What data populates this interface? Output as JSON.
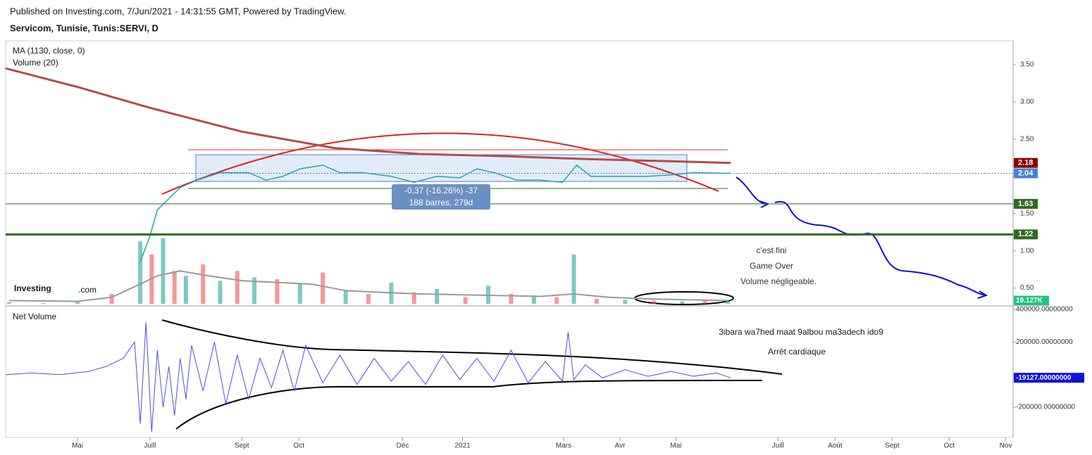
{
  "header": {
    "published": "Published on Investing.com, 7/Jun/2021 - 14:31:55 GMT, Powered by TradingView.",
    "symbol": "Servicom, Tunisie, Tunis:SERVI, D",
    "indicator_ma": "MA (1130, close, 0)",
    "indicator_volume": "Volume (20)",
    "indicator_net_volume": "Net Volume",
    "logo": "Investing",
    "logo_suffix": ".com"
  },
  "annotations": {
    "measure_change": "-0.37 (-16.26%) -37",
    "measure_bars": "188 barres, 279d",
    "note1": "c'est fini",
    "note2": "Game Over",
    "note3": "Volume  négligeable.",
    "note4": "3ibara wa7hed maat 9albou ma3adech ido9",
    "note5": "Arrêt cardiaque"
  },
  "chart_data": [
    {
      "type": "line",
      "panel": "price",
      "xlim": [
        -1.26,
        16.4
      ],
      "xticks": [
        {
          "value": 0,
          "label": "Mai"
        },
        {
          "value": 1.27,
          "label": "Juill"
        },
        {
          "value": 2.88,
          "label": "Sept"
        },
        {
          "value": 3.88,
          "label": "Oct"
        },
        {
          "value": 5.7,
          "label": "Déc"
        },
        {
          "value": 6.75,
          "label": "2021"
        },
        {
          "value": 8.52,
          "label": "Mars"
        },
        {
          "value": 9.51,
          "label": "Avr"
        },
        {
          "value": 10.49,
          "label": "Mai"
        },
        {
          "value": 12.28,
          "label": "Juill"
        },
        {
          "value": 13.28,
          "label": "Août"
        },
        {
          "value": 14.28,
          "label": "Sept"
        },
        {
          "value": 15.28,
          "label": "Oct"
        },
        {
          "value": 16.27,
          "label": "Nov"
        }
      ],
      "ylim": [
        0.26,
        3.82
      ],
      "yticks": [
        {
          "value": 0.5,
          "label": "0.50"
        },
        {
          "value": 1.0,
          "label": "1.00"
        },
        {
          "value": 1.5,
          "label": "1.50"
        },
        {
          "value": 2.0,
          "label": "2.00"
        },
        {
          "value": 2.5,
          "label": "2.50"
        },
        {
          "value": 3.0,
          "label": "3.00"
        },
        {
          "value": 3.5,
          "label": "3.50"
        }
      ],
      "series": [
        {
          "name": "Close",
          "color": "#26a69a",
          "x": [
            1.1,
            1.27,
            1.4,
            1.6,
            1.8,
            2.1,
            2.5,
            3.0,
            3.3,
            3.6,
            3.9,
            4.3,
            4.6,
            5.0,
            5.5,
            5.9,
            6.3,
            6.7,
            7.0,
            7.3,
            7.7,
            8.1,
            8.5,
            8.75,
            9.0,
            9.5,
            10.0,
            10.4,
            10.8,
            11.45
          ],
          "values": [
            0.85,
            1.2,
            1.55,
            1.7,
            1.85,
            1.95,
            2.05,
            2.05,
            1.95,
            2.0,
            2.1,
            2.15,
            2.05,
            2.05,
            2.0,
            1.92,
            2.0,
            1.98,
            2.1,
            2.05,
            1.95,
            1.95,
            1.92,
            2.15,
            2.0,
            2.0,
            2.0,
            2.02,
            2.05,
            2.04
          ]
        },
        {
          "name": "MA (1130, close, 0)",
          "color": "#b24c4c",
          "x": [
            -1.26,
            0,
            1.27,
            2.88,
            4.5,
            6,
            7.5,
            9,
            10.5,
            11.45
          ],
          "values": [
            3.45,
            3.2,
            2.92,
            2.6,
            2.38,
            2.3,
            2.27,
            2.23,
            2.2,
            2.18
          ]
        }
      ],
      "levels": [
        {
          "value": 2.18,
          "label": "2.18",
          "color": "#8b0000"
        },
        {
          "value": 2.04,
          "label": "2.04",
          "color": "#4a7fd8"
        },
        {
          "value": 1.63,
          "label": "1.63",
          "color": "#2e6b1f"
        },
        {
          "value": 1.22,
          "label": "1.22",
          "color": "#2e6b1f"
        }
      ]
    },
    {
      "type": "bar",
      "panel": "volume",
      "ylim": [
        0,
        1600
      ],
      "x": [
        -1.2,
        -0.6,
        0,
        0.6,
        1.1,
        1.3,
        1.5,
        1.7,
        1.9,
        2.2,
        2.5,
        2.8,
        3.1,
        3.5,
        3.9,
        4.3,
        4.7,
        5.1,
        5.5,
        5.9,
        6.3,
        6.8,
        7.2,
        7.6,
        8.0,
        8.4,
        8.7,
        9.1,
        9.6,
        10.1,
        10.6,
        11.0,
        11.4
      ],
      "values": [
        10,
        5,
        15,
        60,
        380,
        300,
        400,
        200,
        170,
        240,
        140,
        200,
        160,
        150,
        120,
        190,
        80,
        60,
        130,
        70,
        90,
        40,
        110,
        60,
        50,
        40,
        300,
        30,
        25,
        20,
        15,
        20,
        19.127
      ],
      "colors": [
        "#26a69a",
        "#ef5350"
      ],
      "series": [
        {
          "name": "Volume (20)",
          "color": "#999999",
          "x": [
            -1.2,
            0,
            0.6,
            1.1,
            1.4,
            1.8,
            2.3,
            2.9,
            3.5,
            4.1,
            4.7,
            5.3,
            6.0,
            6.7,
            7.4,
            8.1,
            8.7,
            9.3,
            10.0,
            10.6,
            11.4
          ],
          "values": [
            20,
            15,
            40,
            120,
            170,
            200,
            170,
            140,
            130,
            120,
            80,
            70,
            60,
            55,
            50,
            45,
            60,
            40,
            30,
            25,
            20
          ]
        }
      ],
      "last": {
        "value": 19.127,
        "label": "19.127K",
        "color": "#26c281"
      }
    },
    {
      "type": "line",
      "panel": "net_volume",
      "ylim": [
        -385000,
        400000
      ],
      "yticks": [
        {
          "value": -200000,
          "label": "-200000.00000000"
        },
        {
          "value": 200000,
          "label": "200000.00000000"
        },
        {
          "value": 400000,
          "label": "400000.00000000"
        }
      ],
      "series": [
        {
          "name": "Net Volume",
          "color": "#4a4ee0",
          "x": [
            -1.26,
            -0.8,
            -0.3,
            0.2,
            0.5,
            0.8,
            1.0,
            1.1,
            1.2,
            1.3,
            1.4,
            1.5,
            1.6,
            1.7,
            1.8,
            1.9,
            2.0,
            2.2,
            2.4,
            2.6,
            2.8,
            3.0,
            3.2,
            3.4,
            3.6,
            3.8,
            4.0,
            4.3,
            4.6,
            4.9,
            5.2,
            5.5,
            5.8,
            6.1,
            6.4,
            6.7,
            7.0,
            7.3,
            7.6,
            7.9,
            8.2,
            8.5,
            8.6,
            8.7,
            8.9,
            9.2,
            9.6,
            10.0,
            10.4,
            10.8,
            11.2,
            11.45
          ],
          "values": [
            0,
            10000,
            0,
            20000,
            50000,
            100000,
            200000,
            -300000,
            320000,
            -350000,
            150000,
            -200000,
            50000,
            -250000,
            100000,
            -150000,
            180000,
            -100000,
            200000,
            -180000,
            120000,
            -150000,
            100000,
            -80000,
            150000,
            -100000,
            180000,
            -50000,
            120000,
            -60000,
            100000,
            -40000,
            80000,
            -60000,
            120000,
            -30000,
            100000,
            -40000,
            150000,
            -50000,
            80000,
            -40000,
            260000,
            -30000,
            60000,
            -20000,
            30000,
            -10000,
            20000,
            -10000,
            10000,
            -19127
          ]
        }
      ],
      "last": {
        "value": -19127,
        "label": "-19127.00000000",
        "color": "#1010e0"
      }
    }
  ]
}
